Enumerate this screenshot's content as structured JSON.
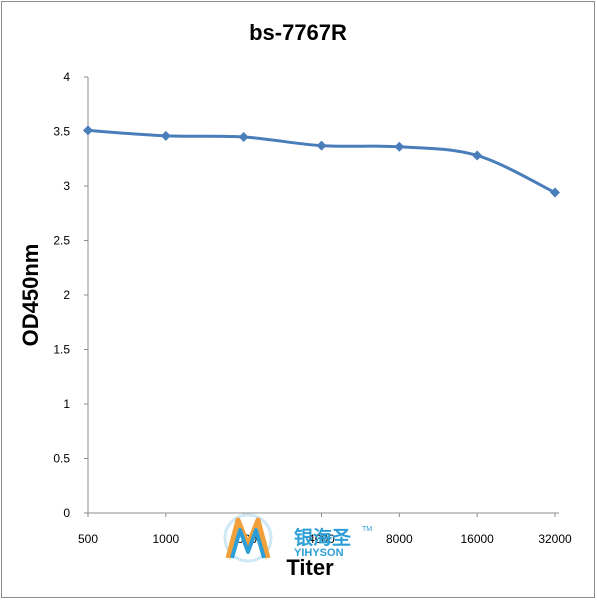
{
  "chart_data": {
    "type": "line",
    "title": "bs-7767R",
    "xlabel": "Titer",
    "ylabel": "OD450nm",
    "categories": [
      "500",
      "1000",
      "2000",
      "4000",
      "8000",
      "16000",
      "32000"
    ],
    "series": [
      {
        "values": [
          3.51,
          3.46,
          3.45,
          3.37,
          3.36,
          3.28,
          2.94
        ]
      }
    ],
    "ylim": [
      0,
      4
    ],
    "yticks": [
      "0",
      "0.5",
      "1",
      "1.5",
      "2",
      "2.5",
      "3",
      "3.5",
      "4"
    ],
    "grid": false,
    "legend": "none",
    "colors": {
      "line": "#4a7ebb",
      "axis": "#8c8c8c"
    }
  },
  "watermark": {
    "name_cn": "银海圣",
    "name_en": "YIHYSON",
    "tm": "TM"
  }
}
